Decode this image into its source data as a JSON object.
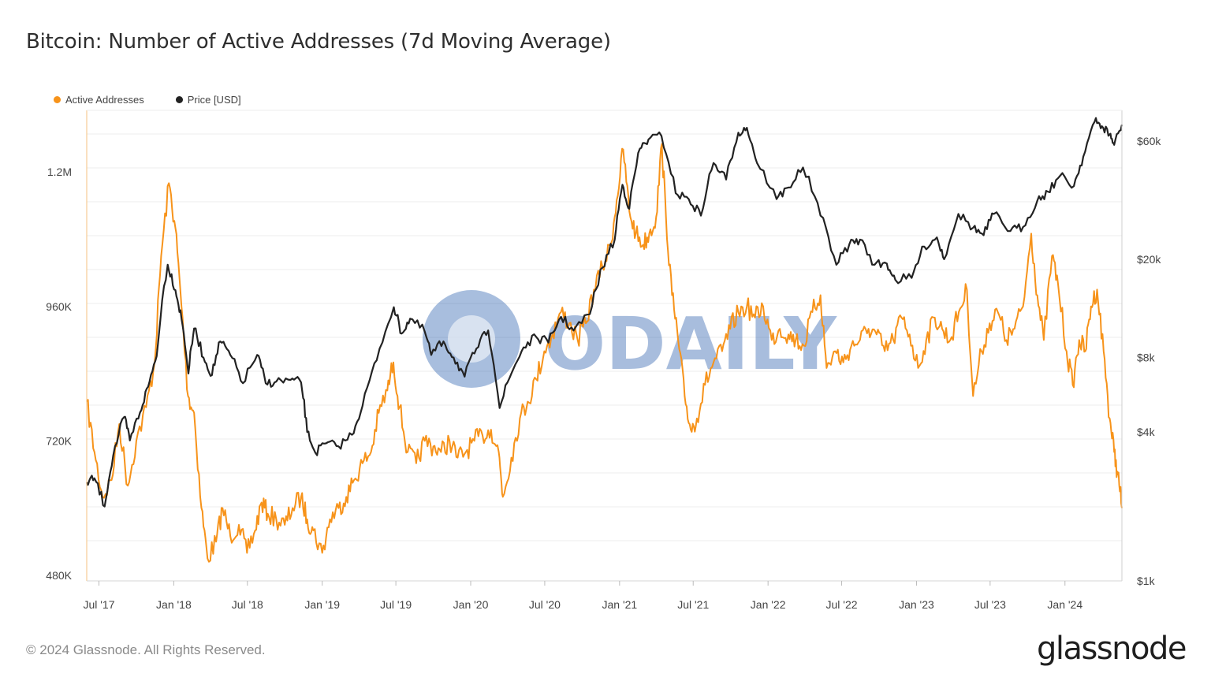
{
  "title": "Bitcoin: Number of Active Addresses (7d Moving Average)",
  "footer": "© 2024 Glassnode. All Rights Reserved.",
  "brand": "glassnode",
  "watermark": "ODAILY",
  "colors": {
    "active": "#f7931a",
    "price": "#222222",
    "grid": "#ececec",
    "watermark": "#3f6fb5"
  },
  "chart_data": {
    "type": "line",
    "title": "Bitcoin: Number of Active Addresses (7d Moving Average)",
    "x_range": [
      "2017-06-01",
      "2024-05-20"
    ],
    "x_ticks": [
      {
        "date": "2017-07-01",
        "label": "Jul '17"
      },
      {
        "date": "2018-01-01",
        "label": "Jan '18"
      },
      {
        "date": "2018-07-01",
        "label": "Jul '18"
      },
      {
        "date": "2019-01-01",
        "label": "Jan '19"
      },
      {
        "date": "2019-07-01",
        "label": "Jul '19"
      },
      {
        "date": "2020-01-01",
        "label": "Jan '20"
      },
      {
        "date": "2020-07-01",
        "label": "Jul '20"
      },
      {
        "date": "2021-01-01",
        "label": "Jan '21"
      },
      {
        "date": "2021-07-01",
        "label": "Jul '21"
      },
      {
        "date": "2022-01-01",
        "label": "Jan '22"
      },
      {
        "date": "2022-07-01",
        "label": "Jul '22"
      },
      {
        "date": "2023-01-01",
        "label": "Jan '23"
      },
      {
        "date": "2023-07-01",
        "label": "Jul '23"
      },
      {
        "date": "2024-01-01",
        "label": "Jan '24"
      }
    ],
    "y_left": {
      "ticks": [
        480000,
        720000,
        960000,
        1200000
      ],
      "labels": [
        "480K",
        "720K",
        "960K",
        "1.2M"
      ],
      "range": [
        470000,
        1310000
      ]
    },
    "y_right": {
      "scale": "log",
      "ticks": [
        1000,
        4000,
        8000,
        20000,
        60000
      ],
      "labels": [
        "$1k",
        "$4k",
        "$8k",
        "$20k",
        "$60k"
      ],
      "range": [
        1000,
        80000
      ]
    },
    "legend": [
      "Active Addresses",
      "Price [USD]"
    ],
    "legend_position": "top-left",
    "series": [
      {
        "name": "Active Addresses",
        "axis": "left",
        "points": [
          [
            "2017-06-01",
            790000
          ],
          [
            "2017-06-20",
            700000
          ],
          [
            "2017-07-10",
            620000
          ],
          [
            "2017-08-01",
            650000
          ],
          [
            "2017-08-20",
            750000
          ],
          [
            "2017-09-10",
            640000
          ],
          [
            "2017-10-01",
            720000
          ],
          [
            "2017-10-25",
            780000
          ],
          [
            "2017-11-15",
            860000
          ],
          [
            "2017-12-01",
            1050000
          ],
          [
            "2017-12-20",
            1180000
          ],
          [
            "2018-01-05",
            1100000
          ],
          [
            "2018-01-20",
            960000
          ],
          [
            "2018-02-05",
            800000
          ],
          [
            "2018-02-20",
            770000
          ],
          [
            "2018-03-10",
            600000
          ],
          [
            "2018-03-25",
            510000
          ],
          [
            "2018-04-15",
            540000
          ],
          [
            "2018-05-01",
            600000
          ],
          [
            "2018-05-20",
            550000
          ],
          [
            "2018-06-10",
            570000
          ],
          [
            "2018-06-30",
            520000
          ],
          [
            "2018-07-20",
            560000
          ],
          [
            "2018-08-05",
            610000
          ],
          [
            "2018-08-20",
            590000
          ],
          [
            "2018-09-10",
            580000
          ],
          [
            "2018-10-01",
            570000
          ],
          [
            "2018-10-20",
            600000
          ],
          [
            "2018-11-10",
            620000
          ],
          [
            "2018-11-25",
            580000
          ],
          [
            "2018-12-10",
            560000
          ],
          [
            "2019-01-01",
            520000
          ],
          [
            "2019-01-20",
            580000
          ],
          [
            "2019-02-10",
            600000
          ],
          [
            "2019-03-01",
            620000
          ],
          [
            "2019-03-20",
            650000
          ],
          [
            "2019-04-10",
            680000
          ],
          [
            "2019-05-01",
            700000
          ],
          [
            "2019-05-20",
            770000
          ],
          [
            "2019-06-10",
            810000
          ],
          [
            "2019-06-25",
            860000
          ],
          [
            "2019-07-10",
            780000
          ],
          [
            "2019-07-30",
            700000
          ],
          [
            "2019-08-20",
            680000
          ],
          [
            "2019-09-10",
            720000
          ],
          [
            "2019-10-01",
            710000
          ],
          [
            "2019-10-20",
            700000
          ],
          [
            "2019-11-10",
            720000
          ],
          [
            "2019-11-30",
            690000
          ],
          [
            "2019-12-20",
            700000
          ],
          [
            "2020-01-10",
            720000
          ],
          [
            "2020-01-30",
            730000
          ],
          [
            "2020-02-20",
            740000
          ],
          [
            "2020-03-10",
            700000
          ],
          [
            "2020-03-20",
            620000
          ],
          [
            "2020-04-10",
            690000
          ],
          [
            "2020-05-01",
            760000
          ],
          [
            "2020-05-20",
            790000
          ],
          [
            "2020-06-10",
            830000
          ],
          [
            "2020-06-30",
            880000
          ],
          [
            "2020-07-20",
            910000
          ],
          [
            "2020-08-10",
            950000
          ],
          [
            "2020-08-30",
            930000
          ],
          [
            "2020-09-20",
            900000
          ],
          [
            "2020-10-10",
            930000
          ],
          [
            "2020-10-30",
            990000
          ],
          [
            "2020-11-20",
            1030000
          ],
          [
            "2020-12-10",
            1070000
          ],
          [
            "2020-12-25",
            1150000
          ],
          [
            "2021-01-10",
            1240000
          ],
          [
            "2021-01-25",
            1130000
          ],
          [
            "2021-02-10",
            1090000
          ],
          [
            "2021-02-28",
            1070000
          ],
          [
            "2021-03-15",
            1090000
          ],
          [
            "2021-04-01",
            1120000
          ],
          [
            "2021-04-15",
            1250000
          ],
          [
            "2021-04-25",
            1120000
          ],
          [
            "2021-05-10",
            980000
          ],
          [
            "2021-05-25",
            900000
          ],
          [
            "2021-06-10",
            800000
          ],
          [
            "2021-06-25",
            740000
          ],
          [
            "2021-07-10",
            760000
          ],
          [
            "2021-07-30",
            820000
          ],
          [
            "2021-08-20",
            860000
          ],
          [
            "2021-09-10",
            880000
          ],
          [
            "2021-09-30",
            920000
          ],
          [
            "2021-10-20",
            950000
          ],
          [
            "2021-11-10",
            960000
          ],
          [
            "2021-11-30",
            940000
          ],
          [
            "2021-12-20",
            960000
          ],
          [
            "2022-01-10",
            900000
          ],
          [
            "2022-01-30",
            920000
          ],
          [
            "2022-02-20",
            910000
          ],
          [
            "2022-03-10",
            900000
          ],
          [
            "2022-03-30",
            890000
          ],
          [
            "2022-04-20",
            950000
          ],
          [
            "2022-05-10",
            980000
          ],
          [
            "2022-05-25",
            850000
          ],
          [
            "2022-06-15",
            880000
          ],
          [
            "2022-07-05",
            860000
          ],
          [
            "2022-07-25",
            890000
          ],
          [
            "2022-08-15",
            900000
          ],
          [
            "2022-09-05",
            920000
          ],
          [
            "2022-09-25",
            910000
          ],
          [
            "2022-10-15",
            880000
          ],
          [
            "2022-11-05",
            900000
          ],
          [
            "2022-11-25",
            940000
          ],
          [
            "2022-12-15",
            910000
          ],
          [
            "2023-01-05",
            850000
          ],
          [
            "2023-01-25",
            900000
          ],
          [
            "2023-02-15",
            940000
          ],
          [
            "2023-03-05",
            920000
          ],
          [
            "2023-03-25",
            900000
          ],
          [
            "2023-04-15",
            950000
          ],
          [
            "2023-05-05",
            990000
          ],
          [
            "2023-05-20",
            800000
          ],
          [
            "2023-06-10",
            880000
          ],
          [
            "2023-06-30",
            930000
          ],
          [
            "2023-07-20",
            950000
          ],
          [
            "2023-08-10",
            900000
          ],
          [
            "2023-08-30",
            920000
          ],
          [
            "2023-09-20",
            960000
          ],
          [
            "2023-10-10",
            1090000
          ],
          [
            "2023-10-25",
            980000
          ],
          [
            "2023-11-10",
            900000
          ],
          [
            "2023-11-30",
            1050000
          ],
          [
            "2023-12-15",
            1000000
          ],
          [
            "2024-01-05",
            880000
          ],
          [
            "2024-01-20",
            820000
          ],
          [
            "2024-02-05",
            900000
          ],
          [
            "2024-02-20",
            880000
          ],
          [
            "2024-03-05",
            960000
          ],
          [
            "2024-03-20",
            990000
          ],
          [
            "2024-04-05",
            880000
          ],
          [
            "2024-04-20",
            760000
          ],
          [
            "2024-05-01",
            700000
          ],
          [
            "2024-05-10",
            660000
          ],
          [
            "2024-05-20",
            600000
          ]
        ]
      },
      {
        "name": "Price [USD]",
        "axis": "right",
        "points": [
          [
            "2017-06-01",
            2500
          ],
          [
            "2017-06-20",
            2600
          ],
          [
            "2017-07-15",
            2000
          ],
          [
            "2017-08-05",
            3200
          ],
          [
            "2017-09-01",
            4600
          ],
          [
            "2017-09-15",
            3700
          ],
          [
            "2017-10-10",
            4800
          ],
          [
            "2017-10-30",
            6100
          ],
          [
            "2017-11-20",
            8100
          ],
          [
            "2017-12-17",
            19000
          ],
          [
            "2018-01-05",
            15000
          ],
          [
            "2018-01-20",
            11500
          ],
          [
            "2018-02-06",
            6900
          ],
          [
            "2018-02-20",
            10500
          ],
          [
            "2018-03-15",
            8000
          ],
          [
            "2018-04-05",
            6800
          ],
          [
            "2018-04-25",
            9300
          ],
          [
            "2018-05-20",
            8200
          ],
          [
            "2018-06-20",
            6300
          ],
          [
            "2018-07-25",
            8200
          ],
          [
            "2018-08-15",
            6300
          ],
          [
            "2018-09-10",
            6400
          ],
          [
            "2018-10-15",
            6500
          ],
          [
            "2018-11-10",
            6350
          ],
          [
            "2018-11-25",
            4000
          ],
          [
            "2018-12-15",
            3300
          ],
          [
            "2019-01-10",
            3600
          ],
          [
            "2019-02-10",
            3500
          ],
          [
            "2019-03-15",
            3900
          ],
          [
            "2019-04-10",
            5100
          ],
          [
            "2019-05-15",
            7800
          ],
          [
            "2019-06-26",
            12800
          ],
          [
            "2019-07-15",
            10000
          ],
          [
            "2019-08-05",
            11500
          ],
          [
            "2019-09-10",
            10200
          ],
          [
            "2019-09-26",
            8200
          ],
          [
            "2019-10-26",
            9300
          ],
          [
            "2019-11-20",
            8000
          ],
          [
            "2019-12-17",
            6700
          ],
          [
            "2020-01-15",
            8700
          ],
          [
            "2020-02-13",
            10300
          ],
          [
            "2020-03-12",
            5000
          ],
          [
            "2020-04-10",
            6900
          ],
          [
            "2020-05-10",
            8800
          ],
          [
            "2020-06-10",
            9700
          ],
          [
            "2020-07-10",
            9200
          ],
          [
            "2020-08-10",
            11700
          ],
          [
            "2020-09-10",
            10300
          ],
          [
            "2020-10-20",
            12000
          ],
          [
            "2020-11-20",
            18500
          ],
          [
            "2020-12-20",
            24000
          ],
          [
            "2021-01-08",
            40000
          ],
          [
            "2021-01-25",
            32000
          ],
          [
            "2021-02-20",
            56000
          ],
          [
            "2021-03-13",
            61000
          ],
          [
            "2021-04-14",
            63000
          ],
          [
            "2021-05-19",
            37000
          ],
          [
            "2021-06-20",
            35000
          ],
          [
            "2021-07-20",
            30000
          ],
          [
            "2021-08-20",
            49000
          ],
          [
            "2021-09-20",
            42000
          ],
          [
            "2021-10-20",
            65000
          ],
          [
            "2021-11-10",
            68000
          ],
          [
            "2021-12-05",
            49000
          ],
          [
            "2022-01-22",
            35000
          ],
          [
            "2022-02-20",
            39000
          ],
          [
            "2022-03-28",
            47000
          ],
          [
            "2022-05-10",
            30000
          ],
          [
            "2022-06-18",
            19000
          ],
          [
            "2022-07-20",
            23000
          ],
          [
            "2022-08-15",
            24000
          ],
          [
            "2022-09-20",
            19000
          ],
          [
            "2022-10-20",
            19200
          ],
          [
            "2022-11-10",
            16500
          ],
          [
            "2022-12-20",
            16800
          ],
          [
            "2023-01-20",
            22500
          ],
          [
            "2023-02-20",
            24500
          ],
          [
            "2023-03-10",
            20000
          ],
          [
            "2023-04-14",
            30500
          ],
          [
            "2023-05-20",
            26800
          ],
          [
            "2023-06-15",
            25000
          ],
          [
            "2023-07-10",
            30500
          ],
          [
            "2023-08-20",
            26000
          ],
          [
            "2023-09-20",
            27000
          ],
          [
            "2023-10-25",
            34500
          ],
          [
            "2023-11-20",
            37500
          ],
          [
            "2023-12-20",
            43500
          ],
          [
            "2024-01-23",
            39500
          ],
          [
            "2024-02-15",
            52000
          ],
          [
            "2024-03-14",
            72000
          ],
          [
            "2024-04-01",
            69000
          ],
          [
            "2024-04-20",
            64000
          ],
          [
            "2024-05-01",
            58000
          ],
          [
            "2024-05-20",
            70000
          ]
        ]
      }
    ]
  }
}
